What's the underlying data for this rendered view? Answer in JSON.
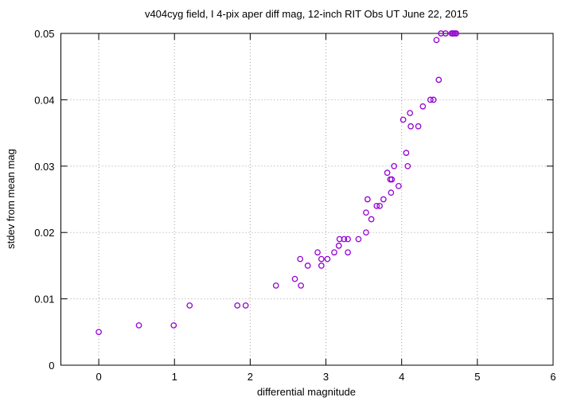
{
  "chart_data": {
    "type": "scatter",
    "title": "v404cyg field, I 4-pix aper diff mag,  12-inch RIT Obs UT June 22, 2015",
    "x_label": "differential magnitude",
    "y_label": "stdev from mean mag",
    "xlim": [
      -0.5,
      6
    ],
    "ylim": [
      0,
      0.05
    ],
    "xticks": [
      0,
      1,
      2,
      3,
      4,
      5,
      6
    ],
    "yticks": [
      0,
      0.01,
      0.02,
      0.03,
      0.04,
      0.05
    ],
    "grid": true,
    "series": [
      {
        "color": "#9400d3",
        "x": [
          0,
          0.53,
          0.99,
          1.2,
          1.83,
          1.94,
          2.34,
          2.59,
          2.67,
          2.66,
          2.76,
          2.89,
          2.94,
          2.94,
          3.02,
          3.11,
          3.18,
          3.17,
          3.24,
          3.29,
          3.29,
          3.43,
          3.53,
          3.53,
          3.55,
          3.6,
          3.67,
          3.71,
          3.76,
          3.81,
          3.85,
          3.87,
          3.86,
          3.9,
          3.96,
          4.02,
          4.06,
          4.08,
          4.11,
          4.12,
          4.22,
          4.28,
          4.38,
          4.42,
          4.46,
          4.49,
          4.52,
          4.58,
          4.66,
          4.68,
          4.7,
          4.72
        ],
        "values": [
          0.005,
          0.006,
          0.006,
          0.009,
          0.009,
          0.009,
          0.012,
          0.013,
          0.012,
          0.016,
          0.015,
          0.017,
          0.016,
          0.015,
          0.016,
          0.017,
          0.019,
          0.018,
          0.019,
          0.019,
          0.017,
          0.019,
          0.02,
          0.023,
          0.025,
          0.022,
          0.024,
          0.024,
          0.025,
          0.029,
          0.028,
          0.028,
          0.026,
          0.03,
          0.027,
          0.037,
          0.032,
          0.03,
          0.038,
          0.036,
          0.036,
          0.039,
          0.04,
          0.04,
          0.049,
          0.043,
          0.05,
          0.05,
          0.05,
          0.05,
          0.05,
          0.05
        ]
      }
    ]
  }
}
